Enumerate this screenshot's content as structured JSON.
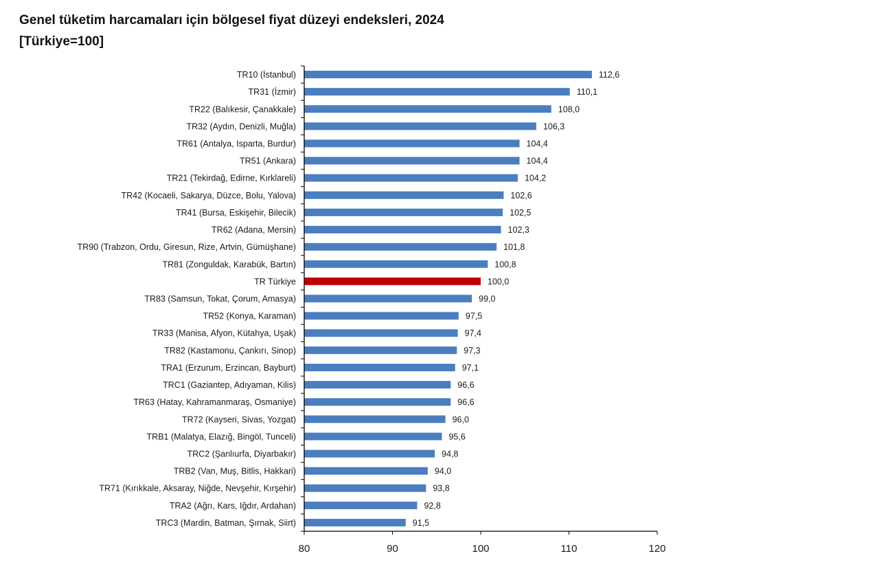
{
  "chart_data": {
    "type": "bar",
    "orientation": "horizontal",
    "title": "Genel tüketim harcamaları için bölgesel fiyat düzeyi endeksleri, 2024",
    "subtitle": "[Türkiye=100]",
    "xlabel": "",
    "ylabel": "",
    "xlim": [
      80,
      120
    ],
    "x_ticks": [
      80,
      90,
      100,
      110,
      120
    ],
    "x_tick_labels": [
      "80",
      "90",
      "100",
      "110",
      "120"
    ],
    "grid": false,
    "legend": "none",
    "colors": {
      "default": "#4a7ebf",
      "highlight": "#c00000"
    },
    "highlight_category": "TR Türkiye",
    "categories": [
      "TR10 (İstanbul)",
      "TR31 (İzmir)",
      "TR22 (Balıkesir, Çanakkale)",
      "TR32 (Aydın, Denizli, Muğla)",
      "TR61 (Antalya, Isparta, Burdur)",
      "TR51 (Ankara)",
      "TR21 (Tekirdağ, Edirne, Kırklareli)",
      "TR42 (Kocaeli, Sakarya, Düzce, Bolu, Yalova)",
      "TR41 (Bursa, Eskişehir, Bilecik)",
      "TR62 (Adana, Mersin)",
      "TR90 (Trabzon, Ordu, Giresun, Rize, Artvin, Gümüşhane)",
      "TR81 (Zonguldak, Karabük, Bartın)",
      "TR Türkiye",
      "TR83 (Samsun, Tokat, Çorum, Amasya)",
      "TR52 (Konya, Karaman)",
      "TR33 (Manisa, Afyon, Kütahya, Uşak)",
      "TR82 (Kastamonu, Çankırı, Sinop)",
      "TRA1 (Erzurum, Erzincan, Bayburt)",
      "TRC1 (Gaziantep, Adıyaman, Kilis)",
      "TR63 (Hatay, Kahramanmaraş, Osmaniye)",
      "TR72 (Kayseri, Sivas, Yozgat)",
      "TRB1 (Malatya, Elazığ, Bingöl, Tunceli)",
      "TRC2 (Şanlıurfa, Diyarbakır)",
      "TRB2 (Van, Muş, Bitlis, Hakkari)",
      "TR71 (Kırıkkale, Aksaray, Niğde, Nevşehir, Kırşehir)",
      "TRA2 (Ağrı, Kars, Iğdır, Ardahan)",
      "TRC3 (Mardin, Batman, Şırnak, Siirt)"
    ],
    "values": [
      112.6,
      110.1,
      108.0,
      106.3,
      104.4,
      104.4,
      104.2,
      102.6,
      102.5,
      102.3,
      101.8,
      100.8,
      100.0,
      99.0,
      97.5,
      97.4,
      97.3,
      97.1,
      96.6,
      96.6,
      96.0,
      95.6,
      94.8,
      94.0,
      93.8,
      92.8,
      91.5
    ],
    "value_labels": [
      "112,6",
      "110,1",
      "108,0",
      "106,3",
      "104,4",
      "104,4",
      "104,2",
      "102,6",
      "102,5",
      "102,3",
      "101,8",
      "100,8",
      "100,0",
      "99,0",
      "97,5",
      "97,4",
      "97,3",
      "97,1",
      "96,6",
      "96,6",
      "96,0",
      "95,6",
      "94,8",
      "94,0",
      "93,8",
      "92,8",
      "91,5"
    ]
  }
}
